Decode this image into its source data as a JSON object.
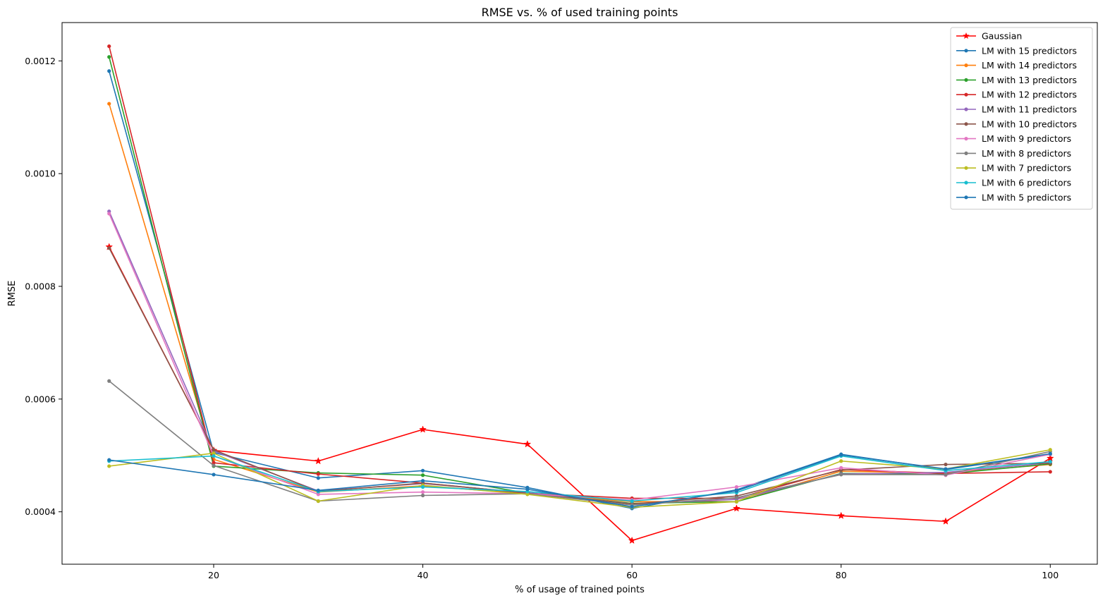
{
  "chart_data": {
    "type": "line",
    "title": "RMSE vs. % of used training points",
    "xlabel": "% of usage of trained points",
    "ylabel": "RMSE",
    "xlim": [
      5.5,
      104.5
    ],
    "ylim": [
      0.000307,
      0.001268
    ],
    "xticks": [
      20,
      40,
      60,
      80,
      100
    ],
    "yticks": [
      0.0004,
      0.0006,
      0.0008,
      0.001,
      0.0012
    ],
    "ytick_labels": [
      "0.0004",
      "0.0006",
      "0.0008",
      "0.0010",
      "0.0012"
    ],
    "grid": false,
    "legend_position": "top-right",
    "x": [
      10,
      20,
      30,
      40,
      50,
      60,
      70,
      80,
      90,
      100
    ],
    "series": [
      {
        "name": "Gaussian",
        "color": "#ff0000",
        "marker": "star",
        "values": [
          0.00087,
          0.000509,
          0.00049,
          0.000546,
          0.00052,
          0.000349,
          0.000406,
          0.000393,
          0.000383,
          0.000495
        ]
      },
      {
        "name": "LM with 15 predictors",
        "color": "#1f77b4",
        "marker": "dot",
        "values": [
          0.001182,
          0.000505,
          0.00046,
          0.000473,
          0.000443,
          0.000406,
          0.000439,
          0.000502,
          0.000475,
          0.000502
        ]
      },
      {
        "name": "LM with 14 predictors",
        "color": "#ff7f0e",
        "marker": "dot",
        "values": [
          0.001124,
          0.000493,
          0.000435,
          0.000446,
          0.000432,
          0.000418,
          0.000418,
          0.000472,
          0.000469,
          0.000484
        ]
      },
      {
        "name": "LM with 13 predictors",
        "color": "#2ca02c",
        "marker": "dot",
        "values": [
          0.001207,
          0.000481,
          0.000469,
          0.000465,
          0.000433,
          0.000415,
          0.000418,
          0.000468,
          0.000467,
          0.000485
        ]
      },
      {
        "name": "LM with 12 predictors",
        "color": "#d62728",
        "marker": "dot",
        "values": [
          0.001226,
          0.000487,
          0.000467,
          0.000451,
          0.000433,
          0.000424,
          0.000424,
          0.000475,
          0.000468,
          0.000471
        ]
      },
      {
        "name": "LM with 11 predictors",
        "color": "#9467bd",
        "marker": "dot",
        "values": [
          0.000933,
          0.000508,
          0.000437,
          0.00045,
          0.000434,
          0.000414,
          0.000422,
          0.000467,
          0.00047,
          0.000487
        ]
      },
      {
        "name": "LM with 10 predictors",
        "color": "#8c564b",
        "marker": "dot",
        "values": [
          0.000868,
          0.00051,
          0.000436,
          0.000451,
          0.000433,
          0.000414,
          0.000428,
          0.000474,
          0.000484,
          0.000486
        ]
      },
      {
        "name": "LM with 9 predictors",
        "color": "#e377c2",
        "marker": "dot",
        "values": [
          0.000929,
          0.000499,
          0.000431,
          0.000435,
          0.000432,
          0.000421,
          0.000444,
          0.000478,
          0.000465,
          0.000502
        ]
      },
      {
        "name": "LM with 8 predictors",
        "color": "#7f7f7f",
        "marker": "dot",
        "values": [
          0.000632,
          0.000482,
          0.000419,
          0.000429,
          0.000432,
          0.000412,
          0.000425,
          0.000466,
          0.000466,
          0.000507
        ]
      },
      {
        "name": "LM with 7 predictors",
        "color": "#bcbd22",
        "marker": "dot",
        "values": [
          0.000481,
          0.000504,
          0.000419,
          0.000447,
          0.000431,
          0.000408,
          0.000418,
          0.00049,
          0.000476,
          0.00051
        ]
      },
      {
        "name": "LM with 6 predictors",
        "color": "#17becf",
        "marker": "dot",
        "values": [
          0.00049,
          0.000499,
          0.000436,
          0.000444,
          0.000436,
          0.000419,
          0.000434,
          0.000499,
          0.000473,
          0.000489
        ]
      },
      {
        "name": "LM with 5 predictors",
        "color": "#1f77b4",
        "marker": "dot",
        "values": [
          0.000492,
          0.000466,
          0.000438,
          0.000455,
          0.00044,
          0.000409,
          0.000437,
          0.000501,
          0.000476,
          0.000503
        ]
      }
    ]
  }
}
